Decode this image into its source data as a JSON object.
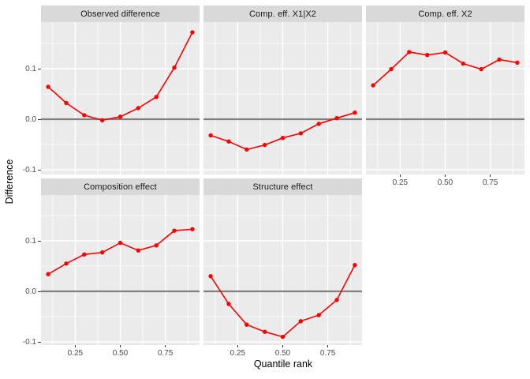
{
  "chart_data": {
    "type": "line",
    "title": "",
    "xlabel": "Quantile rank",
    "ylabel": "Difference",
    "x": [
      0.1,
      0.2,
      0.3,
      0.4,
      0.5,
      0.6,
      0.7,
      0.8,
      0.9
    ],
    "xlim": [
      0.06,
      0.94
    ],
    "ylim": [
      -0.109,
      0.192
    ],
    "x_ticks": [
      0.25,
      0.5,
      0.75
    ],
    "x_tick_labels": [
      "0.25",
      "0.50",
      "0.75"
    ],
    "x_minor_ticks": [
      0.125,
      0.375,
      0.625,
      0.875
    ],
    "y_ticks": [
      0.1,
      0.0,
      -0.1
    ],
    "y_tick_labels": [
      "0.1",
      "0.0",
      "-0.1"
    ],
    "y_minor_ticks": [
      0.15,
      0.05,
      -0.05
    ],
    "grid": true,
    "legend": false,
    "zero_reference_line": 0.0,
    "facets": [
      {
        "title": "Observed difference",
        "row": 0,
        "col": 0,
        "x_axis": false,
        "values": [
          0.064,
          0.032,
          0.008,
          -0.002,
          0.005,
          0.022,
          0.044,
          0.102,
          0.172
        ]
      },
      {
        "title": "Comp. eff. X1|X2",
        "row": 0,
        "col": 1,
        "x_axis": false,
        "values": [
          -0.032,
          -0.044,
          -0.06,
          -0.051,
          -0.037,
          -0.028,
          -0.009,
          0.002,
          0.013
        ]
      },
      {
        "title": "Comp. eff. X2",
        "row": 0,
        "col": 2,
        "x_axis": true,
        "values": [
          0.067,
          0.099,
          0.133,
          0.127,
          0.132,
          0.11,
          0.099,
          0.118,
          0.112
        ]
      },
      {
        "title": "Composition effect",
        "row": 1,
        "col": 0,
        "x_axis": true,
        "values": [
          0.034,
          0.055,
          0.073,
          0.077,
          0.096,
          0.081,
          0.091,
          0.12,
          0.123
        ]
      },
      {
        "title": "Structure effect",
        "row": 1,
        "col": 1,
        "x_axis": true,
        "values": [
          0.03,
          -0.025,
          -0.066,
          -0.08,
          -0.09,
          -0.059,
          -0.047,
          -0.017,
          0.052
        ]
      }
    ],
    "colors": {
      "series": "#ff0000",
      "zero_line": "#7f7f7f",
      "panel_bg": "#ebebeb",
      "strip_bg": "#d9d9d9",
      "grid_line": "#ffffff",
      "axis_text": "#4d4d4d",
      "strip_text": "#1a1a1a"
    }
  }
}
